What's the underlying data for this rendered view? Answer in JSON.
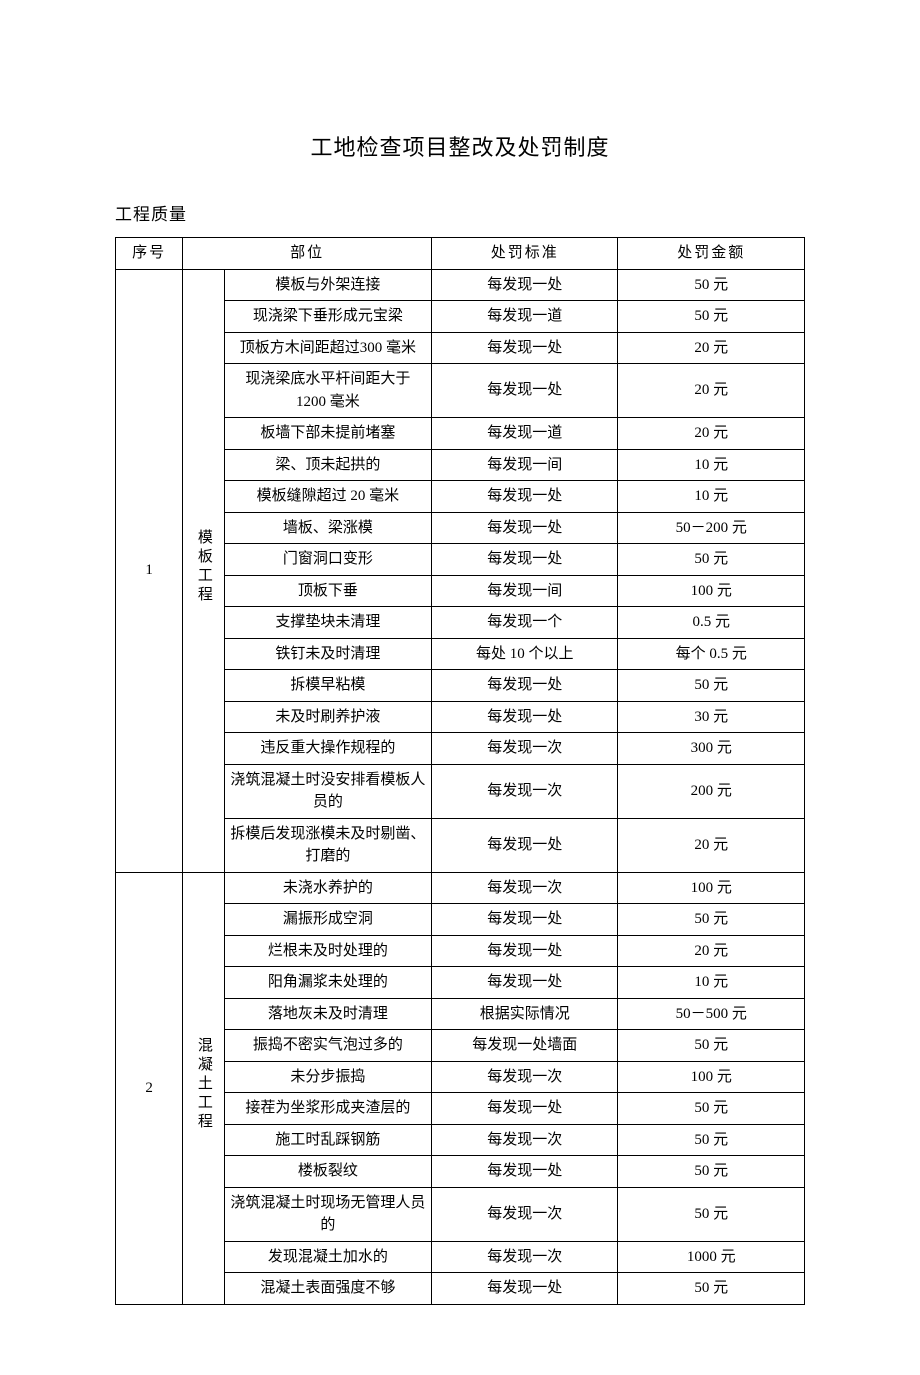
{
  "title": "工地检查项目整改及处罚制度",
  "subtitle": "工程质量",
  "headers": {
    "col1": "序号",
    "col2": "部位",
    "col3": "处罚标准",
    "col4": "处罚金额"
  },
  "sections": [
    {
      "seq": "1",
      "category": "模板工程",
      "rows": [
        {
          "item": "模板与外架连接",
          "std": "每发现一处",
          "pen": "50 元"
        },
        {
          "item": "现浇梁下垂形成元宝梁",
          "std": "每发现一道",
          "pen": "50 元"
        },
        {
          "item": "顶板方木间距超过300 毫米",
          "std": "每发现一处",
          "pen": "20 元"
        },
        {
          "item": "现浇梁底水平杆间距大于 1200 毫米",
          "std": "每发现一处",
          "pen": "20 元"
        },
        {
          "item": "板墙下部未提前堵塞",
          "std": "每发现一道",
          "pen": "20 元"
        },
        {
          "item": "梁、顶未起拱的",
          "std": "每发现一间",
          "pen": "10 元"
        },
        {
          "item": "模板缝隙超过 20 毫米",
          "std": "每发现一处",
          "pen": "10 元"
        },
        {
          "item": "墙板、梁涨模",
          "std": "每发现一处",
          "pen": "50－200 元"
        },
        {
          "item": "门窗洞口变形",
          "std": "每发现一处",
          "pen": "50 元"
        },
        {
          "item": "顶板下垂",
          "std": "每发现一间",
          "pen": "100 元"
        },
        {
          "item": "支撑垫块未清理",
          "std": "每发现一个",
          "pen": "0.5 元"
        },
        {
          "item": "铁钉未及时清理",
          "std": "每处 10 个以上",
          "pen": "每个 0.5 元"
        },
        {
          "item": "拆模早粘模",
          "std": "每发现一处",
          "pen": "50 元"
        },
        {
          "item": "未及时刷养护液",
          "std": "每发现一处",
          "pen": "30 元"
        },
        {
          "item": "违反重大操作规程的",
          "std": "每发现一次",
          "pen": "300 元"
        },
        {
          "item": "浇筑混凝土时没安排看模板人员的",
          "std": "每发现一次",
          "pen": "200 元"
        },
        {
          "item": "拆模后发现涨模未及时剔凿、打磨的",
          "std": "每发现一处",
          "pen": "20 元"
        }
      ]
    },
    {
      "seq": "2",
      "category": "混凝土工程",
      "rows": [
        {
          "item": "未浇水养护的",
          "std": "每发现一次",
          "pen": "100 元"
        },
        {
          "item": "漏振形成空洞",
          "std": "每发现一处",
          "pen": "50 元"
        },
        {
          "item": "烂根未及时处理的",
          "std": "每发现一处",
          "pen": "20 元"
        },
        {
          "item": "阳角漏浆未处理的",
          "std": "每发现一处",
          "pen": "10 元"
        },
        {
          "item": "落地灰未及时清理",
          "std": "根据实际情况",
          "pen": "50－500 元"
        },
        {
          "item": "振捣不密实气泡过多的",
          "std": "每发现一处墙面",
          "pen": "50 元"
        },
        {
          "item": "未分步振捣",
          "std": "每发现一次",
          "pen": "100 元"
        },
        {
          "item": "接茬为坐浆形成夹渣层的",
          "std": "每发现一处",
          "pen": "50 元"
        },
        {
          "item": "施工时乱踩钢筋",
          "std": "每发现一次",
          "pen": "50 元"
        },
        {
          "item": "楼板裂纹",
          "std": "每发现一处",
          "pen": "50 元"
        },
        {
          "item": "浇筑混凝土时现场无管理人员的",
          "std": "每发现一次",
          "pen": "50 元"
        },
        {
          "item": "发现混凝土加水的",
          "std": "每发现一次",
          "pen": "1000 元"
        },
        {
          "item": "混凝土表面强度不够",
          "std": "每发现一处",
          "pen": "50 元"
        }
      ]
    }
  ],
  "style": {
    "background_color": "#ffffff",
    "border_color": "#000000",
    "title_fontsize": 22,
    "body_fontsize": 15
  }
}
